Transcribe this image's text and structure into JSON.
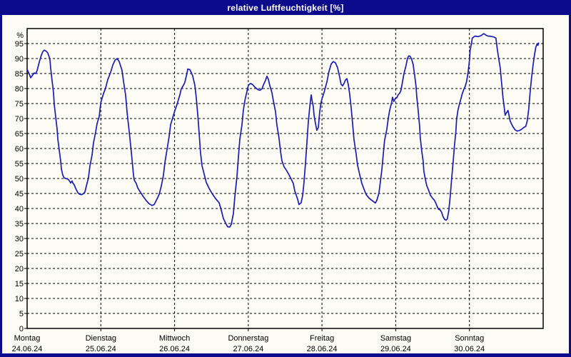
{
  "window": {
    "title": "relative Luftfeuchtigkeit [%]"
  },
  "colors": {
    "title_bar": "#0b0b8c",
    "title_text": "#ffffff",
    "window_border": "#0b0b8c",
    "background": "#fcfcf4",
    "axis": "#000000",
    "grid": "#000000",
    "line": "#1b1bb5"
  },
  "chart_data": {
    "type": "line",
    "title": "relative Luftfeuchtigkeit [%]",
    "ylabel": "%",
    "ylim": [
      0,
      100
    ],
    "y_ticks": [
      0,
      5,
      10,
      15,
      20,
      25,
      30,
      35,
      40,
      45,
      50,
      55,
      60,
      65,
      70,
      75,
      80,
      85,
      90,
      95
    ],
    "grid": "dashed horizontal every 5%, dashed vertical at each day boundary",
    "legend": "none",
    "x_axis": {
      "unit": "days",
      "range_days": 7,
      "labels": [
        {
          "day": "Montag",
          "date": "24.06.24"
        },
        {
          "day": "Dienstag",
          "date": "25.06.24"
        },
        {
          "day": "Mittwoch",
          "date": "26.06.24"
        },
        {
          "day": "Donnerstag",
          "date": "27.06.24"
        },
        {
          "day": "Freitag",
          "date": "28.06.24"
        },
        {
          "day": "Samstag",
          "date": "29.06.24"
        },
        {
          "day": "Sonntag",
          "date": "30.06.24"
        }
      ]
    },
    "series": [
      {
        "name": "relative Luftfeuchtigkeit [%]",
        "color": "#1b1bb5",
        "points": [
          [
            0.0,
            86.4
          ],
          [
            0.029,
            84.8
          ],
          [
            0.048,
            83.6
          ],
          [
            0.077,
            84.6
          ],
          [
            0.097,
            85.2
          ],
          [
            0.116,
            85.0
          ],
          [
            0.136,
            86.0
          ],
          [
            0.165,
            88.8
          ],
          [
            0.194,
            91.2
          ],
          [
            0.213,
            92.3
          ],
          [
            0.232,
            92.8
          ],
          [
            0.261,
            92.4
          ],
          [
            0.281,
            91.8
          ],
          [
            0.3,
            90.5
          ],
          [
            0.31,
            89.6
          ],
          [
            0.319,
            87.0
          ],
          [
            0.339,
            82.6
          ],
          [
            0.358,
            78.5
          ],
          [
            0.368,
            74.7
          ],
          [
            0.387,
            70.6
          ],
          [
            0.407,
            66.5
          ],
          [
            0.416,
            63.2
          ],
          [
            0.436,
            59.5
          ],
          [
            0.455,
            55.8
          ],
          [
            0.465,
            53.2
          ],
          [
            0.484,
            51.1
          ],
          [
            0.503,
            50.2
          ],
          [
            0.523,
            50.0
          ],
          [
            0.552,
            49.8
          ],
          [
            0.571,
            49.3
          ],
          [
            0.591,
            48.5
          ],
          [
            0.61,
            49.2
          ],
          [
            0.62,
            48.5
          ],
          [
            0.639,
            47.9
          ],
          [
            0.658,
            46.7
          ],
          [
            0.687,
            45.3
          ],
          [
            0.707,
            44.8
          ],
          [
            0.736,
            44.6
          ],
          [
            0.755,
            44.8
          ],
          [
            0.784,
            45.5
          ],
          [
            0.804,
            47.5
          ],
          [
            0.833,
            50.3
          ],
          [
            0.852,
            54.2
          ],
          [
            0.881,
            57.9
          ],
          [
            0.9,
            61.9
          ],
          [
            0.929,
            65.5
          ],
          [
            0.949,
            68.3
          ],
          [
            0.978,
            70.7
          ],
          [
            1.0,
            75.4
          ],
          [
            1.036,
            78.3
          ],
          [
            1.065,
            80.2
          ],
          [
            1.094,
            83.0
          ],
          [
            1.133,
            85.4
          ],
          [
            1.162,
            87.8
          ],
          [
            1.191,
            89.4
          ],
          [
            1.22,
            90.0
          ],
          [
            1.249,
            89.0
          ],
          [
            1.287,
            86.1
          ],
          [
            1.307,
            82.5
          ],
          [
            1.336,
            77.8
          ],
          [
            1.355,
            72.2
          ],
          [
            1.384,
            65.9
          ],
          [
            1.404,
            61.1
          ],
          [
            1.423,
            56.3
          ],
          [
            1.442,
            51.5
          ],
          [
            1.452,
            49.5
          ],
          [
            1.481,
            48.3
          ],
          [
            1.5,
            46.9
          ],
          [
            1.539,
            45.3
          ],
          [
            1.578,
            43.9
          ],
          [
            1.617,
            42.6
          ],
          [
            1.655,
            41.6
          ],
          [
            1.694,
            41.0
          ],
          [
            1.723,
            41.3
          ],
          [
            1.752,
            42.7
          ],
          [
            1.791,
            44.7
          ],
          [
            1.82,
            47.5
          ],
          [
            1.849,
            51.1
          ],
          [
            1.868,
            55.1
          ],
          [
            1.897,
            59.5
          ],
          [
            1.926,
            63.9
          ],
          [
            1.946,
            67.9
          ],
          [
            1.975,
            70.3
          ],
          [
            2.004,
            72.7
          ],
          [
            2.023,
            73.9
          ],
          [
            2.043,
            75.5
          ],
          [
            2.072,
            77.9
          ],
          [
            2.091,
            79.9
          ],
          [
            2.12,
            81.1
          ],
          [
            2.139,
            82.0
          ],
          [
            2.168,
            85.0
          ],
          [
            2.178,
            86.5
          ],
          [
            2.207,
            86.3
          ],
          [
            2.227,
            85.3
          ],
          [
            2.246,
            84.2
          ],
          [
            2.275,
            81.1
          ],
          [
            2.294,
            77.1
          ],
          [
            2.314,
            71.5
          ],
          [
            2.333,
            65.1
          ],
          [
            2.352,
            58.7
          ],
          [
            2.372,
            54.3
          ],
          [
            2.401,
            51.5
          ],
          [
            2.43,
            48.7
          ],
          [
            2.469,
            46.7
          ],
          [
            2.507,
            45.1
          ],
          [
            2.556,
            43.3
          ],
          [
            2.604,
            41.9
          ],
          [
            2.633,
            39.5
          ],
          [
            2.662,
            36.7
          ],
          [
            2.701,
            34.7
          ],
          [
            2.72,
            33.9
          ],
          [
            2.749,
            33.8
          ],
          [
            2.769,
            34.7
          ],
          [
            2.798,
            38.3
          ],
          [
            2.817,
            43.9
          ],
          [
            2.846,
            50.7
          ],
          [
            2.866,
            57.1
          ],
          [
            2.885,
            63.1
          ],
          [
            2.914,
            67.9
          ],
          [
            2.933,
            72.7
          ],
          [
            2.953,
            75.9
          ],
          [
            2.982,
            79.1
          ],
          [
            3.001,
            81.1
          ],
          [
            3.03,
            81.7
          ],
          [
            3.059,
            81.3
          ],
          [
            3.088,
            80.5
          ],
          [
            3.127,
            79.7
          ],
          [
            3.156,
            79.4
          ],
          [
            3.185,
            79.9
          ],
          [
            3.204,
            81.1
          ],
          [
            3.233,
            82.7
          ],
          [
            3.253,
            84.1
          ],
          [
            3.272,
            83.1
          ],
          [
            3.291,
            81.1
          ],
          [
            3.32,
            78.7
          ],
          [
            3.34,
            75.9
          ],
          [
            3.369,
            72.3
          ],
          [
            3.388,
            67.9
          ],
          [
            3.417,
            63.5
          ],
          [
            3.437,
            59.1
          ],
          [
            3.456,
            55.9
          ],
          [
            3.485,
            53.9
          ],
          [
            3.514,
            52.9
          ],
          [
            3.543,
            51.7
          ],
          [
            3.572,
            50.3
          ],
          [
            3.611,
            48.3
          ],
          [
            3.63,
            45.9
          ],
          [
            3.669,
            43.1
          ],
          [
            3.688,
            41.3
          ],
          [
            3.717,
            41.9
          ],
          [
            3.737,
            44.3
          ],
          [
            3.756,
            48.7
          ],
          [
            3.776,
            55.1
          ],
          [
            3.795,
            61.9
          ],
          [
            3.814,
            68.7
          ],
          [
            3.834,
            73.9
          ],
          [
            3.853,
            77.9
          ],
          [
            3.863,
            76.3
          ],
          [
            3.882,
            73.9
          ],
          [
            3.892,
            71.1
          ],
          [
            3.911,
            68.3
          ],
          [
            3.93,
            66.1
          ],
          [
            3.95,
            67.0
          ],
          [
            3.969,
            72.2
          ],
          [
            3.988,
            75.4
          ],
          [
            4.0,
            76.6
          ],
          [
            4.027,
            78.6
          ],
          [
            4.066,
            82.2
          ],
          [
            4.095,
            85.8
          ],
          [
            4.124,
            88.2
          ],
          [
            4.153,
            89.0
          ],
          [
            4.182,
            88.6
          ],
          [
            4.211,
            87.0
          ],
          [
            4.24,
            83.8
          ],
          [
            4.259,
            81.4
          ],
          [
            4.279,
            80.9
          ],
          [
            4.298,
            81.7
          ],
          [
            4.317,
            82.8
          ],
          [
            4.337,
            83.3
          ],
          [
            4.356,
            81.4
          ],
          [
            4.375,
            78.2
          ],
          [
            4.395,
            73.8
          ],
          [
            4.414,
            68.6
          ],
          [
            4.433,
            63.1
          ],
          [
            4.462,
            58.3
          ],
          [
            4.482,
            54.5
          ],
          [
            4.511,
            51.3
          ],
          [
            4.54,
            48.4
          ],
          [
            4.569,
            46.5
          ],
          [
            4.598,
            44.7
          ],
          [
            4.637,
            43.5
          ],
          [
            4.666,
            42.9
          ],
          [
            4.704,
            42.2
          ],
          [
            4.724,
            41.8
          ],
          [
            4.743,
            42.7
          ],
          [
            4.772,
            45.1
          ],
          [
            4.791,
            48.7
          ],
          [
            4.811,
            52.7
          ],
          [
            4.83,
            57.9
          ],
          [
            4.849,
            62.7
          ],
          [
            4.879,
            66.3
          ],
          [
            4.898,
            69.9
          ],
          [
            4.917,
            72.7
          ],
          [
            4.946,
            75.5
          ],
          [
            4.956,
            77.1
          ],
          [
            4.975,
            75.7
          ],
          [
            4.995,
            76.7
          ],
          [
            5.014,
            76.9
          ],
          [
            5.033,
            77.9
          ],
          [
            5.053,
            78.4
          ],
          [
            5.072,
            79.5
          ],
          [
            5.091,
            82.1
          ],
          [
            5.111,
            84.9
          ],
          [
            5.14,
            87.7
          ],
          [
            5.159,
            90.1
          ],
          [
            5.178,
            90.9
          ],
          [
            5.198,
            90.7
          ],
          [
            5.217,
            89.7
          ],
          [
            5.236,
            88.1
          ],
          [
            5.256,
            84.5
          ],
          [
            5.275,
            80.9
          ],
          [
            5.285,
            77.3
          ],
          [
            5.304,
            72.9
          ],
          [
            5.323,
            67.7
          ],
          [
            5.333,
            63.7
          ],
          [
            5.352,
            59.3
          ],
          [
            5.372,
            55.7
          ],
          [
            5.381,
            52.5
          ],
          [
            5.401,
            49.9
          ],
          [
            5.42,
            47.7
          ],
          [
            5.449,
            45.9
          ],
          [
            5.468,
            44.5
          ],
          [
            5.497,
            43.5
          ],
          [
            5.526,
            42.7
          ],
          [
            5.546,
            41.7
          ],
          [
            5.565,
            40.5
          ],
          [
            5.584,
            39.7
          ],
          [
            5.604,
            39.5
          ],
          [
            5.623,
            38.7
          ],
          [
            5.642,
            37.3
          ],
          [
            5.662,
            36.4
          ],
          [
            5.681,
            36.1
          ],
          [
            5.7,
            36.5
          ],
          [
            5.72,
            39.3
          ],
          [
            5.739,
            44.1
          ],
          [
            5.758,
            49.7
          ],
          [
            5.778,
            55.3
          ],
          [
            5.797,
            60.9
          ],
          [
            5.816,
            65.7
          ],
          [
            5.826,
            69.7
          ],
          [
            5.845,
            72.9
          ],
          [
            5.865,
            74.9
          ],
          [
            5.884,
            76.5
          ],
          [
            5.903,
            78.3
          ],
          [
            5.923,
            79.7
          ],
          [
            5.942,
            80.7
          ],
          [
            5.961,
            82.3
          ],
          [
            5.981,
            85.3
          ],
          [
            6.0,
            89.3
          ],
          [
            6.01,
            92.9
          ],
          [
            6.029,
            95.2
          ],
          [
            6.039,
            96.8
          ],
          [
            6.058,
            97.2
          ],
          [
            6.078,
            97.5
          ],
          [
            6.116,
            97.3
          ],
          [
            6.155,
            97.6
          ],
          [
            6.194,
            98.3
          ],
          [
            6.223,
            97.8
          ],
          [
            6.252,
            97.5
          ],
          [
            6.291,
            97.4
          ],
          [
            6.33,
            97.2
          ],
          [
            6.359,
            96.8
          ],
          [
            6.378,
            93.0
          ],
          [
            6.397,
            90.0
          ],
          [
            6.417,
            87.0
          ],
          [
            6.436,
            82.0
          ],
          [
            6.455,
            77.0
          ],
          [
            6.475,
            73.0
          ],
          [
            6.484,
            71.1
          ],
          [
            6.504,
            72.0
          ],
          [
            6.523,
            72.7
          ],
          [
            6.533,
            71.5
          ],
          [
            6.552,
            69.2
          ],
          [
            6.571,
            68.2
          ],
          [
            6.591,
            67.2
          ],
          [
            6.62,
            66.2
          ],
          [
            6.649,
            65.8
          ],
          [
            6.678,
            66.0
          ],
          [
            6.707,
            66.4
          ],
          [
            6.736,
            67.0
          ],
          [
            6.765,
            67.4
          ],
          [
            6.784,
            69.2
          ],
          [
            6.804,
            73.2
          ],
          [
            6.823,
            78.7
          ],
          [
            6.842,
            83.5
          ],
          [
            6.862,
            87.5
          ],
          [
            6.881,
            91.0
          ],
          [
            6.9,
            93.8
          ],
          [
            6.92,
            95.0
          ],
          [
            6.929,
            94.4
          ],
          [
            6.939,
            95.2
          ]
        ]
      }
    ]
  }
}
